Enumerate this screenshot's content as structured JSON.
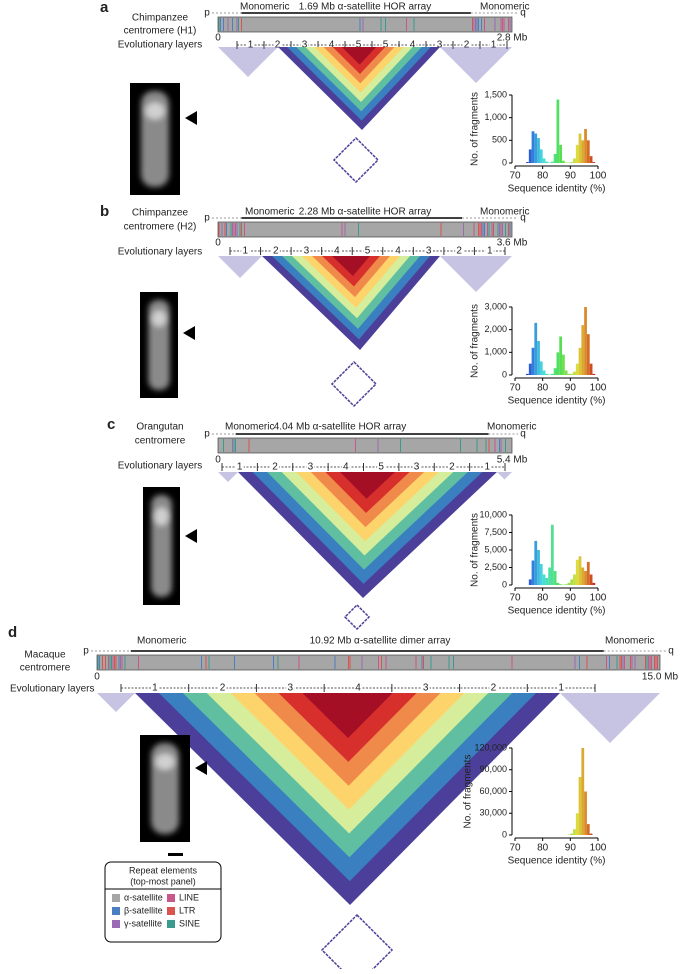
{
  "panels": [
    {
      "label": "a",
      "species": [
        "Chimpanzee",
        "centromere (H1)"
      ],
      "layers_title": "Evolutionary layers",
      "left_region": "Monomeric",
      "array": "1.69 Mb α-satellite HOR array",
      "right_region": "Monomeric",
      "p": "p",
      "q": "q",
      "start": "0",
      "end": "2.8 Mb",
      "layers": [
        "1",
        "2",
        "3",
        "4",
        "5",
        "5",
        "4",
        "3",
        "2",
        "1"
      ],
      "histogram": {
        "type": "histogram",
        "bins": [
          70,
          71,
          72,
          73,
          74,
          75,
          76,
          77,
          78,
          79,
          80,
          81,
          82,
          83,
          84,
          85,
          86,
          87,
          88,
          89,
          90,
          91,
          92,
          93,
          94,
          95,
          96,
          97,
          98,
          99,
          100
        ],
        "counts": [
          0,
          0,
          0,
          0,
          20,
          300,
          700,
          650,
          550,
          300,
          100,
          30,
          10,
          30,
          200,
          1400,
          400,
          50,
          10,
          10,
          20,
          100,
          400,
          650,
          500,
          750,
          500,
          150,
          20,
          0
        ],
        "xlim": [
          70,
          100
        ],
        "xticks": [
          70,
          80,
          90,
          100
        ],
        "ylim": [
          0,
          1500
        ],
        "yticks": [
          0,
          500,
          {
            "value": 1000,
            "label": "1,000"
          },
          {
            "value": 1500,
            "label": "1,500"
          }
        ],
        "ylabel": "No. of fragments",
        "xlabel": "Sequence identity (%)"
      }
    },
    {
      "label": "b",
      "species": [
        "Chimpanzee",
        "centromere (H2)"
      ],
      "layers_title": "Evolutionary layers",
      "left_region": "Monomeric",
      "array": "2.28 Mb α-satellite HOR array",
      "right_region": "Monomeric",
      "p": "p",
      "q": "q",
      "start": "0",
      "end": "3.6 Mb",
      "layers": [
        "1",
        "2",
        "3",
        "4",
        "5",
        "4",
        "3",
        "2",
        "1"
      ],
      "histogram": {
        "type": "histogram",
        "bins": [
          70,
          71,
          72,
          73,
          74,
          75,
          76,
          77,
          78,
          79,
          80,
          81,
          82,
          83,
          84,
          85,
          86,
          87,
          88,
          89,
          90,
          91,
          92,
          93,
          94,
          95,
          96,
          97,
          98,
          99,
          100
        ],
        "counts": [
          0,
          0,
          0,
          0,
          50,
          500,
          1200,
          2300,
          1500,
          600,
          200,
          50,
          20,
          50,
          300,
          1000,
          1700,
          900,
          200,
          50,
          50,
          150,
          500,
          1200,
          2200,
          3000,
          1800,
          500,
          50,
          0
        ],
        "xlim": [
          70,
          100
        ],
        "xticks": [
          70,
          80,
          90,
          100
        ],
        "ylim": [
          0,
          3000
        ],
        "yticks": [
          0,
          {
            "value": 1000,
            "label": "1,000"
          },
          {
            "value": 2000,
            "label": "2,000"
          },
          {
            "value": 3000,
            "label": "3,000"
          }
        ],
        "ylabel": "No. of fragments",
        "xlabel": "Sequence identity (%)"
      }
    },
    {
      "label": "c",
      "species": [
        "Orangutan",
        "centromere"
      ],
      "layers_title": "Evolutionary layers",
      "left_region": "Monomeric",
      "array": "4.04 Mb α-satellite HOR array",
      "right_region": "Monomeric",
      "p": "p",
      "q": "q",
      "start": "0",
      "end": "5.4 Mb",
      "layers": [
        "1",
        "2",
        "3",
        "4",
        "5",
        "3",
        "2",
        "1"
      ],
      "histogram": {
        "type": "histogram",
        "bins": [
          70,
          71,
          72,
          73,
          74,
          75,
          76,
          77,
          78,
          79,
          80,
          81,
          82,
          83,
          84,
          85,
          86,
          87,
          88,
          89,
          90,
          91,
          92,
          93,
          94,
          95,
          96,
          97,
          98,
          99,
          100
        ],
        "counts": [
          0,
          0,
          0,
          0,
          0,
          800,
          3500,
          6300,
          5000,
          3000,
          1500,
          1000,
          2500,
          8600,
          2000,
          300,
          100,
          50,
          100,
          300,
          800,
          1500,
          3600,
          4100,
          2500,
          2000,
          3300,
          1500,
          300,
          0
        ],
        "xlim": [
          70,
          100
        ],
        "xticks": [
          70,
          80,
          90,
          100
        ],
        "ylim": [
          0,
          10000
        ],
        "yticks": [
          0,
          {
            "value": 2500,
            "label": "2,500"
          },
          {
            "value": 5000,
            "label": "5,000"
          },
          {
            "value": 7500,
            "label": "7,500"
          },
          {
            "value": 10000,
            "label": "10,000"
          }
        ],
        "ylabel": "No. of fragments",
        "xlabel": "Sequence identity (%)"
      }
    },
    {
      "label": "d",
      "species": [
        "Macaque",
        "centromere"
      ],
      "layers_title": "Evolutionary layers",
      "left_region": "Monomeric",
      "array": "10.92 Mb α-satellite dimer array",
      "right_region": "Monomeric",
      "p": "p",
      "q": "q",
      "start": "0",
      "end": "15.0 Mb",
      "layers": [
        "1",
        "2",
        "3",
        "4",
        "3",
        "2",
        "1"
      ],
      "histogram": {
        "type": "histogram",
        "bins": [
          70,
          71,
          72,
          73,
          74,
          75,
          76,
          77,
          78,
          79,
          80,
          81,
          82,
          83,
          84,
          85,
          86,
          87,
          88,
          89,
          90,
          91,
          92,
          93,
          94,
          95,
          96,
          97,
          98,
          99,
          100
        ],
        "counts": [
          0,
          0,
          0,
          0,
          0,
          0,
          0,
          0,
          0,
          0,
          0,
          0,
          0,
          0,
          0,
          0,
          0,
          0,
          0,
          500,
          2000,
          8000,
          30000,
          80000,
          120000,
          60000,
          15000,
          2000,
          0,
          0
        ],
        "xlim": [
          70,
          100
        ],
        "xticks": [
          70,
          80,
          90,
          100
        ],
        "ylim": [
          0,
          120000
        ],
        "yticks": [
          0,
          {
            "value": 30000,
            "label": "30,000"
          },
          {
            "value": 60000,
            "label": "60,000"
          },
          {
            "value": 90000,
            "label": "90,000"
          },
          {
            "value": 120000,
            "label": "120,000"
          }
        ],
        "ylabel": "No. of fragments",
        "xlabel": "Sequence identity (%)"
      }
    }
  ],
  "legend": {
    "title": [
      "Repeat elements",
      "(top-most panel)"
    ],
    "items": [
      {
        "name": "α-satellite",
        "color": "#a6a6a6"
      },
      {
        "name": "LINE",
        "color": "#c8578a"
      },
      {
        "name": "β-satellite",
        "color": "#4a7fc1"
      },
      {
        "name": "LTR",
        "color": "#d9534f"
      },
      {
        "name": "γ-satellite",
        "color": "#9a6bb3"
      },
      {
        "name": "SINE",
        "color": "#3a9a8e"
      }
    ]
  }
}
